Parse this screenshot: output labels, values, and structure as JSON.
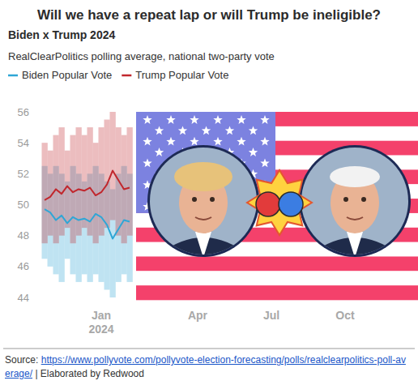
{
  "chart_data": {
    "type": "line",
    "title": "Will we have a repeat lap or will Trump be ineligible?",
    "subtitle": "Biden x Trump 2024",
    "caption": "RealClearPolitics polling average, national two-party vote",
    "source_label": "Source:",
    "source_url": "https://www.pollyvote.com/pollyvote-election-forecasting/polls/realclearpolitics-poll-average/",
    "credit": "| Elaborated by Redwood",
    "categories": [
      null,
      null,
      null,
      null,
      null,
      null,
      null,
      null,
      null,
      null,
      "Jan 2024",
      null,
      null,
      null,
      null,
      null,
      null,
      null,
      null,
      null,
      null,
      null,
      null,
      null,
      null,
      null,
      null,
      "Apr",
      null,
      null,
      null,
      null,
      null,
      null,
      null,
      null,
      null,
      null,
      null,
      null,
      "Jul",
      null,
      null,
      null,
      null,
      null,
      null,
      null,
      null,
      null,
      null,
      null,
      null,
      "Oct",
      null,
      null,
      null,
      null,
      null,
      null,
      null,
      null,
      null,
      null,
      null
    ],
    "series": [
      {
        "name": "Biden Popular Vote",
        "color": "#2fa6d6",
        "values": [
          49.7,
          49.5,
          49.0,
          49.3,
          48.8,
          49.2,
          49.0,
          49.1,
          48.9,
          49.4,
          49.2,
          48.7,
          47.8,
          48.4,
          49.0,
          48.9,
          null,
          null,
          null,
          null,
          null,
          null,
          null,
          null,
          null,
          null,
          null,
          null,
          null,
          null,
          null,
          null,
          null,
          null,
          null,
          null,
          null,
          null,
          null,
          null,
          null,
          null,
          null,
          null,
          null,
          null,
          null,
          null,
          null,
          null,
          null,
          null,
          null,
          null,
          null,
          null,
          null,
          null,
          null,
          null,
          null,
          null,
          null,
          null,
          null
        ],
        "upper": [
          52.5,
          52.0,
          52.5,
          52.0,
          51.5,
          52.5,
          52.0,
          51.5,
          52.0,
          52.5,
          52.0,
          51.5,
          51.0,
          52.0,
          52.5,
          52.0,
          null,
          null,
          null,
          null,
          null,
          null,
          null,
          null,
          null,
          null,
          null,
          null,
          null,
          null,
          null,
          null,
          null,
          null,
          null,
          null,
          null,
          null,
          null,
          null,
          null,
          null,
          null,
          null,
          null,
          null,
          null,
          null,
          null,
          null,
          null,
          null,
          null,
          null,
          null,
          null,
          null,
          null,
          null,
          null,
          null,
          null,
          null,
          null,
          null
        ],
        "lower": [
          46.5,
          46.0,
          45.5,
          45.0,
          46.5,
          45.5,
          45.0,
          45.5,
          45.0,
          45.5,
          45.0,
          44.5,
          44.0,
          45.0,
          45.5,
          45.0,
          null,
          null,
          null,
          null,
          null,
          null,
          null,
          null,
          null,
          null,
          null,
          null,
          null,
          null,
          null,
          null,
          null,
          null,
          null,
          null,
          null,
          null,
          null,
          null,
          null,
          null,
          null,
          null,
          null,
          null,
          null,
          null,
          null,
          null,
          null,
          null,
          null,
          null,
          null,
          null,
          null,
          null,
          null,
          null,
          null,
          null,
          null,
          null,
          null
        ]
      },
      {
        "name": "Trump Popular Vote",
        "color": "#c1272d",
        "values": [
          50.3,
          50.5,
          51.0,
          50.7,
          51.2,
          50.8,
          51.0,
          50.9,
          51.1,
          50.6,
          50.8,
          51.3,
          52.2,
          51.6,
          51.0,
          51.1,
          null,
          null,
          null,
          null,
          null,
          null,
          null,
          null,
          null,
          null,
          null,
          null,
          null,
          null,
          null,
          null,
          null,
          null,
          null,
          null,
          null,
          null,
          null,
          null,
          null,
          null,
          null,
          null,
          null,
          null,
          null,
          null,
          null,
          null,
          null,
          null,
          null,
          null,
          null,
          null,
          null,
          null,
          null,
          null,
          null,
          null,
          null,
          null,
          null
        ],
        "upper": [
          54.0,
          53.5,
          54.5,
          55.0,
          53.5,
          54.5,
          55.0,
          54.5,
          55.0,
          54.0,
          55.0,
          55.5,
          56.0,
          55.0,
          54.5,
          55.0,
          null,
          null,
          null,
          null,
          null,
          null,
          null,
          null,
          null,
          null,
          null,
          null,
          null,
          null,
          null,
          null,
          null,
          null,
          null,
          null,
          null,
          null,
          null,
          null,
          null,
          null,
          null,
          null,
          null,
          null,
          null,
          null,
          null,
          null,
          null,
          null,
          null,
          null,
          null,
          null,
          null,
          null,
          null,
          null,
          null,
          null,
          null,
          null,
          null
        ],
        "lower": [
          47.5,
          48.0,
          47.5,
          48.0,
          48.5,
          47.5,
          48.0,
          48.5,
          48.0,
          47.5,
          48.0,
          48.5,
          49.0,
          48.0,
          47.5,
          48.0,
          null,
          null,
          null,
          null,
          null,
          null,
          null,
          null,
          null,
          null,
          null,
          null,
          null,
          null,
          null,
          null,
          null,
          null,
          null,
          null,
          null,
          null,
          null,
          null,
          null,
          null,
          null,
          null,
          null,
          null,
          null,
          null,
          null,
          null,
          null,
          null,
          null,
          null,
          null,
          null,
          null,
          null,
          null,
          null,
          null,
          null,
          null,
          null,
          null
        ]
      }
    ],
    "ylim": [
      44,
      56
    ],
    "yticks": [
      44,
      46,
      48,
      50,
      52,
      54,
      56
    ],
    "grid": false,
    "legend": "top-left"
  }
}
